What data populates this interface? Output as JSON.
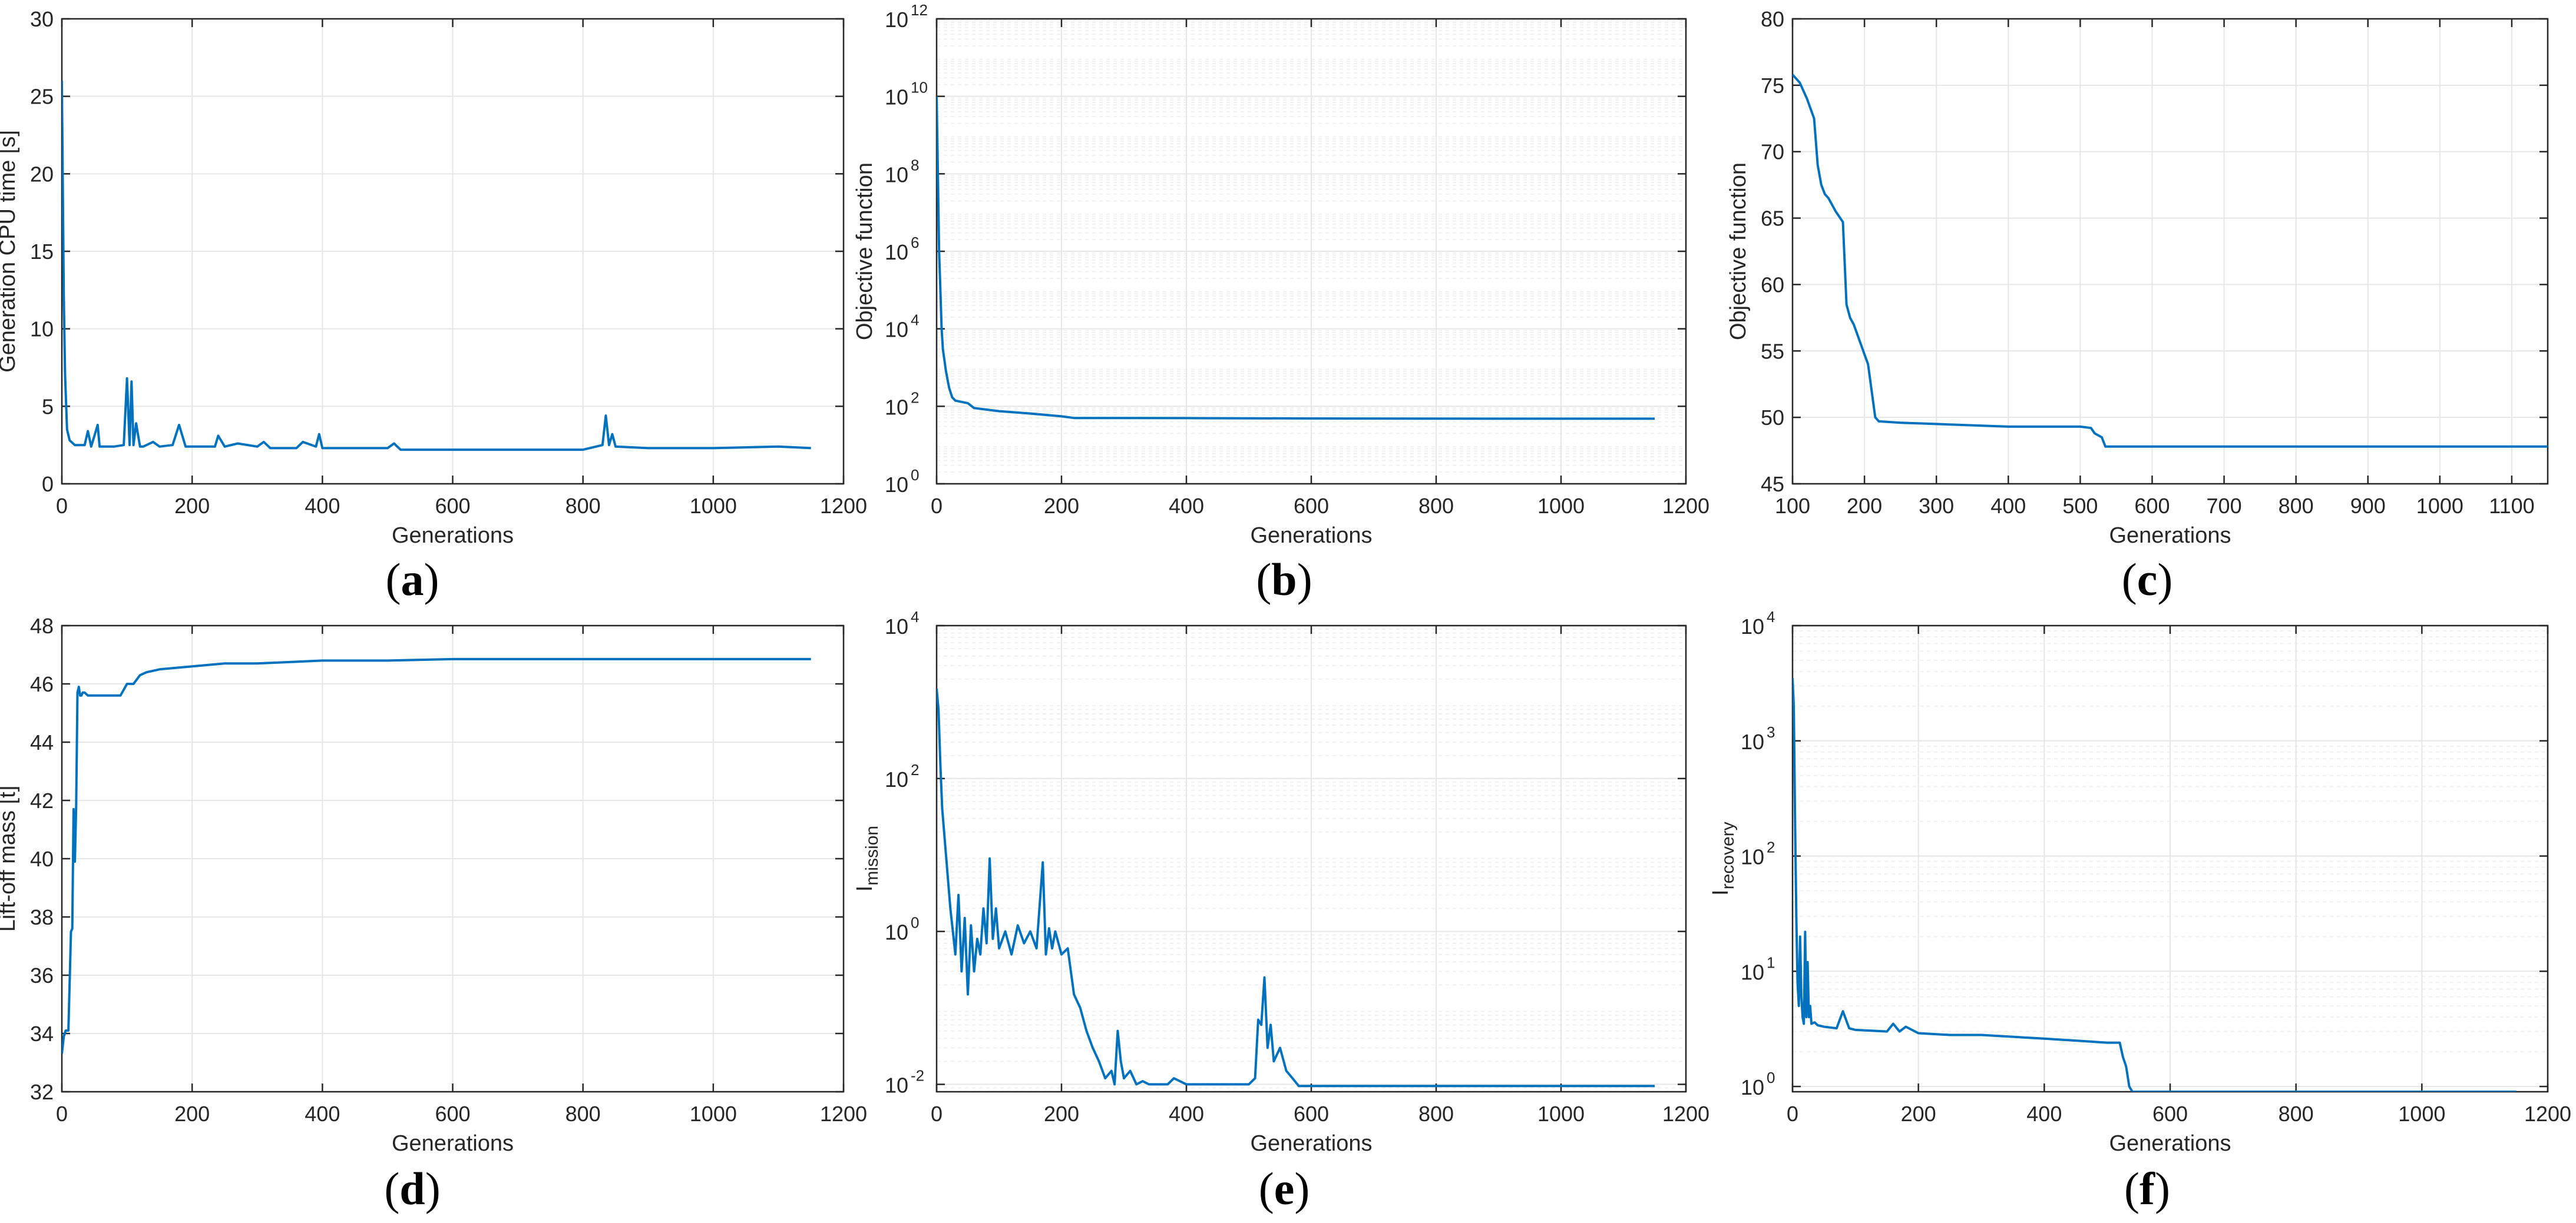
{
  "figure": {
    "captions": [
      "(a)",
      "(b)",
      "(c)",
      "(d)",
      "(e)",
      "(f)"
    ]
  },
  "style": {
    "line_color": "#0072BD",
    "grid_color": "#e6e6e6",
    "axis_color": "#262626"
  },
  "chart_data": [
    {
      "id": "a",
      "type": "line",
      "xlabel": "Generations",
      "ylabel": "Generation CPU time [s]",
      "xlim": [
        0,
        1200
      ],
      "ylim": [
        0,
        30
      ],
      "yscale": "linear",
      "xticks": [
        0,
        200,
        400,
        600,
        800,
        1000,
        1200
      ],
      "yticks": [
        0,
        5,
        10,
        15,
        20,
        25,
        30
      ],
      "grid": true,
      "series": [
        {
          "x": [
            0,
            3,
            5,
            8,
            12,
            20,
            35,
            40,
            45,
            55,
            58,
            65,
            80,
            95,
            100,
            104,
            107,
            110,
            114,
            120,
            125,
            140,
            150,
            170,
            180,
            190,
            200,
            235,
            240,
            250,
            270,
            300,
            310,
            320,
            360,
            370,
            390,
            395,
            400,
            420,
            500,
            510,
            520,
            600,
            700,
            800,
            830,
            835,
            840,
            845,
            850,
            900,
            1000,
            1100,
            1150
          ],
          "y": [
            26,
            12,
            7,
            3.5,
            2.8,
            2.5,
            2.5,
            3.4,
            2.4,
            3.8,
            2.4,
            2.4,
            2.4,
            2.5,
            6.8,
            2.5,
            6.6,
            2.5,
            3.9,
            2.4,
            2.4,
            2.7,
            2.4,
            2.5,
            3.8,
            2.4,
            2.4,
            2.4,
            3.1,
            2.4,
            2.6,
            2.4,
            2.7,
            2.3,
            2.3,
            2.7,
            2.4,
            3.2,
            2.3,
            2.3,
            2.3,
            2.6,
            2.2,
            2.2,
            2.2,
            2.2,
            2.5,
            4.4,
            2.5,
            3.2,
            2.4,
            2.3,
            2.3,
            2.4,
            2.3
          ]
        }
      ]
    },
    {
      "id": "b",
      "type": "line",
      "xlabel": "Generations",
      "ylabel": "Objective function",
      "xlim": [
        0,
        1200
      ],
      "ylim": [
        1,
        1000000000000.0
      ],
      "yscale": "log",
      "xticks": [
        0,
        200,
        400,
        600,
        800,
        1000,
        1200
      ],
      "yticks": [
        1,
        100.0,
        10000.0,
        1000000.0,
        100000000.0,
        10000000000.0,
        1000000000000.0
      ],
      "grid": true,
      "series": [
        {
          "x": [
            0,
            2,
            4,
            6,
            8,
            10,
            15,
            20,
            25,
            30,
            50,
            60,
            100,
            150,
            200,
            220,
            300,
            400,
            600,
            800,
            1000,
            1150
          ],
          "y": [
            10000000000.0,
            100000000.0,
            1000000.0,
            100000.0,
            10000.0,
            3000,
            800,
            300,
            170,
            140,
            120,
            90,
            75,
            65,
            55,
            50,
            50,
            49.5,
            48.5,
            48,
            47.8,
            47.8
          ]
        }
      ]
    },
    {
      "id": "c",
      "type": "line",
      "xlabel": "Generations",
      "ylabel": "Objective function",
      "xlim": [
        100,
        1150
      ],
      "ylim": [
        45,
        80
      ],
      "yscale": "linear",
      "xticks": [
        100,
        200,
        300,
        400,
        500,
        600,
        700,
        800,
        900,
        1000,
        1100
      ],
      "yticks": [
        45,
        50,
        55,
        60,
        65,
        70,
        75,
        80
      ],
      "grid": true,
      "series": [
        {
          "x": [
            100,
            110,
            120,
            130,
            135,
            140,
            145,
            150,
            160,
            170,
            175,
            180,
            185,
            195,
            205,
            210,
            215,
            220,
            250,
            300,
            400,
            500,
            515,
            520,
            530,
            535,
            600,
            800,
            1000,
            1150
          ],
          "y": [
            75.8,
            75.2,
            74,
            72.5,
            69,
            67.5,
            66.8,
            66.5,
            65.5,
            64.7,
            58.5,
            57.5,
            57,
            55.5,
            54,
            52,
            50,
            49.7,
            49.6,
            49.5,
            49.3,
            49.3,
            49.2,
            48.8,
            48.5,
            47.8,
            47.8,
            47.8,
            47.8,
            47.8
          ]
        }
      ]
    },
    {
      "id": "d",
      "type": "line",
      "xlabel": "Generations",
      "ylabel": "Lift-off mass [t]",
      "xlim": [
        0,
        1200
      ],
      "ylim": [
        32,
        48
      ],
      "yscale": "linear",
      "xticks": [
        0,
        200,
        400,
        600,
        800,
        1000,
        1200
      ],
      "yticks": [
        32,
        34,
        36,
        38,
        40,
        42,
        44,
        46,
        48
      ],
      "grid": true,
      "series": [
        {
          "x": [
            0,
            3,
            6,
            10,
            14,
            16,
            18,
            20,
            22,
            24,
            26,
            28,
            30,
            32,
            35,
            40,
            60,
            90,
            100,
            110,
            120,
            130,
            150,
            200,
            250,
            300,
            400,
            500,
            600,
            800,
            1000,
            1150
          ],
          "y": [
            33.3,
            33.9,
            34.1,
            34.1,
            37.5,
            37.6,
            41.7,
            39.9,
            41.8,
            45.7,
            45.9,
            45.6,
            45.6,
            45.7,
            45.7,
            45.6,
            45.6,
            45.6,
            46.0,
            46.0,
            46.3,
            46.4,
            46.5,
            46.6,
            46.7,
            46.7,
            46.8,
            46.8,
            46.85,
            46.85,
            46.85,
            46.85
          ]
        }
      ]
    },
    {
      "id": "e",
      "type": "line",
      "xlabel": "Generations",
      "ylabel": "I",
      "ylabel_sub": "mission",
      "xlim": [
        0,
        1200
      ],
      "ylim": [
        0.008,
        10000
      ],
      "yscale": "log",
      "xticks": [
        0,
        200,
        400,
        600,
        800,
        1000,
        1200
      ],
      "yticks": [
        0.01,
        1,
        100,
        10000
      ],
      "ytick_labels": [
        "10",
        "10",
        "10",
        "10"
      ],
      "ytick_exps": [
        "-2",
        "0",
        "2",
        "4"
      ],
      "grid": true,
      "series": [
        {
          "x": [
            0,
            3,
            6,
            9,
            12,
            15,
            18,
            22,
            26,
            30,
            35,
            40,
            45,
            50,
            55,
            60,
            65,
            70,
            75,
            80,
            85,
            90,
            95,
            100,
            110,
            120,
            130,
            140,
            150,
            160,
            170,
            175,
            180,
            185,
            190,
            200,
            210,
            220,
            230,
            240,
            250,
            260,
            270,
            280,
            285,
            290,
            295,
            300,
            310,
            320,
            330,
            340,
            350,
            370,
            380,
            400,
            420,
            440,
            460,
            480,
            500,
            510,
            515,
            520,
            525,
            530,
            535,
            540,
            550,
            560,
            570,
            580,
            600,
            800,
            1000,
            1150
          ],
          "y": [
            1500,
            800,
            150,
            40,
            20,
            10,
            5,
            2,
            1,
            0.5,
            3,
            0.3,
            1.5,
            0.15,
            1.2,
            0.3,
            0.8,
            0.5,
            2,
            0.7,
            9,
            0.8,
            2,
            0.6,
            1,
            0.5,
            1.2,
            0.7,
            1,
            0.6,
            8,
            0.5,
            1.1,
            0.6,
            1,
            0.5,
            0.6,
            0.15,
            0.1,
            0.05,
            0.03,
            0.02,
            0.012,
            0.015,
            0.01,
            0.05,
            0.02,
            0.012,
            0.015,
            0.01,
            0.011,
            0.01,
            0.01,
            0.01,
            0.012,
            0.01,
            0.01,
            0.01,
            0.01,
            0.01,
            0.01,
            0.012,
            0.07,
            0.06,
            0.25,
            0.03,
            0.06,
            0.02,
            0.03,
            0.015,
            0.012,
            0.0095,
            0.0095,
            0.0095,
            0.0095,
            0.0095
          ]
        }
      ]
    },
    {
      "id": "f",
      "type": "line",
      "xlabel": "Generations",
      "ylabel": "I",
      "ylabel_sub": "recovery",
      "xlim": [
        0,
        1200
      ],
      "ylim": [
        0.9,
        10000
      ],
      "yscale": "log",
      "xticks": [
        0,
        200,
        400,
        600,
        800,
        1000,
        1200
      ],
      "yticks": [
        1,
        10,
        100,
        1000,
        10000
      ],
      "ytick_labels": [
        "10",
        "10",
        "10",
        "10",
        "10"
      ],
      "ytick_exps": [
        "0",
        "1",
        "2",
        "3",
        "4"
      ],
      "grid": true,
      "series": [
        {
          "x": [
            0,
            2,
            4,
            6,
            8,
            10,
            12,
            14,
            16,
            18,
            20,
            22,
            24,
            26,
            28,
            30,
            35,
            40,
            50,
            70,
            80,
            90,
            100,
            150,
            160,
            170,
            180,
            200,
            250,
            300,
            350,
            400,
            450,
            500,
            520,
            525,
            530,
            535,
            540,
            600,
            800,
            1000,
            1150
          ],
          "y": [
            3500,
            2000,
            200,
            30,
            8,
            5,
            20,
            6,
            4,
            3.5,
            22,
            4,
            12,
            4,
            5,
            3.5,
            3.6,
            3.4,
            3.3,
            3.2,
            4.5,
            3.2,
            3.1,
            3.0,
            3.5,
            3.0,
            3.3,
            2.9,
            2.8,
            2.8,
            2.7,
            2.6,
            2.5,
            2.4,
            2.4,
            1.8,
            1.5,
            1.0,
            0.9,
            0.9,
            0.9,
            0.9,
            0.9
          ]
        }
      ]
    }
  ]
}
